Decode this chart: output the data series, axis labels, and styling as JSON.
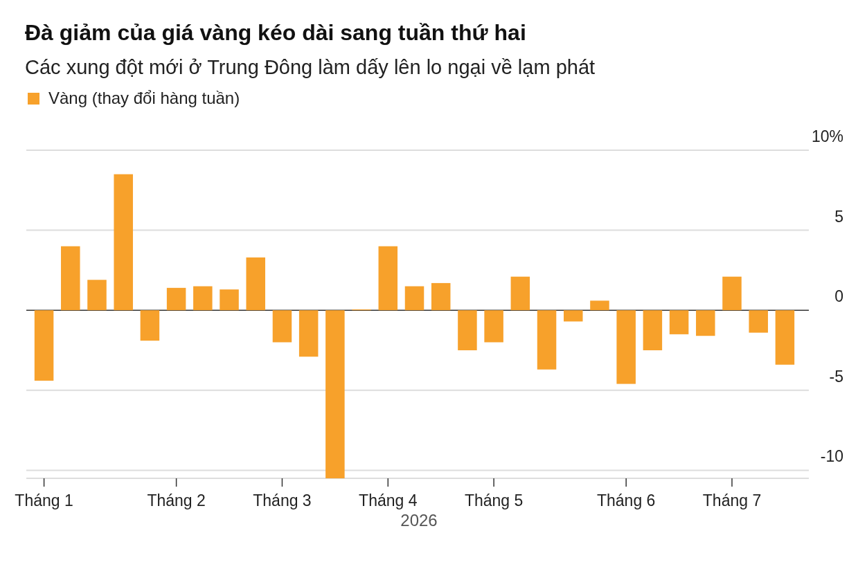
{
  "chart_data": {
    "type": "bar",
    "title": "Đà giảm của giá vàng kéo dài sang tuần thứ hai",
    "subtitle": "Các xung đột mới ở Trung Đông làm dấy lên lo ngại về lạm phát",
    "xlabel": "2026",
    "categories": [
      "Tháng 1",
      null,
      null,
      null,
      null,
      "Tháng 2",
      null,
      null,
      null,
      "Tháng 3",
      null,
      null,
      null,
      "Tháng 4",
      null,
      null,
      null,
      "Tháng 5",
      null,
      null,
      null,
      null,
      "Tháng 6",
      null,
      null,
      null,
      "Tháng 7",
      null,
      null
    ],
    "series": [
      {
        "name": "Vàng (thay đổi hàng tuần)",
        "color": "#f7a12b",
        "values": [
          -4.4,
          4.0,
          1.9,
          8.5,
          -1.9,
          1.4,
          1.5,
          1.3,
          3.3,
          -2.0,
          -2.9,
          -10.5,
          0.05,
          4.0,
          1.5,
          1.7,
          -2.5,
          -2.0,
          2.1,
          -3.7,
          -0.7,
          0.6,
          -4.6,
          -2.5,
          -1.5,
          -1.6,
          2.1,
          -1.4,
          -3.4
        ]
      }
    ],
    "ylim": [
      -10.5,
      10
    ],
    "yticks": [
      {
        "value": 10,
        "label": "10%"
      },
      5,
      0,
      -5,
      -10
    ],
    "grid": "y",
    "legend": "top left"
  }
}
